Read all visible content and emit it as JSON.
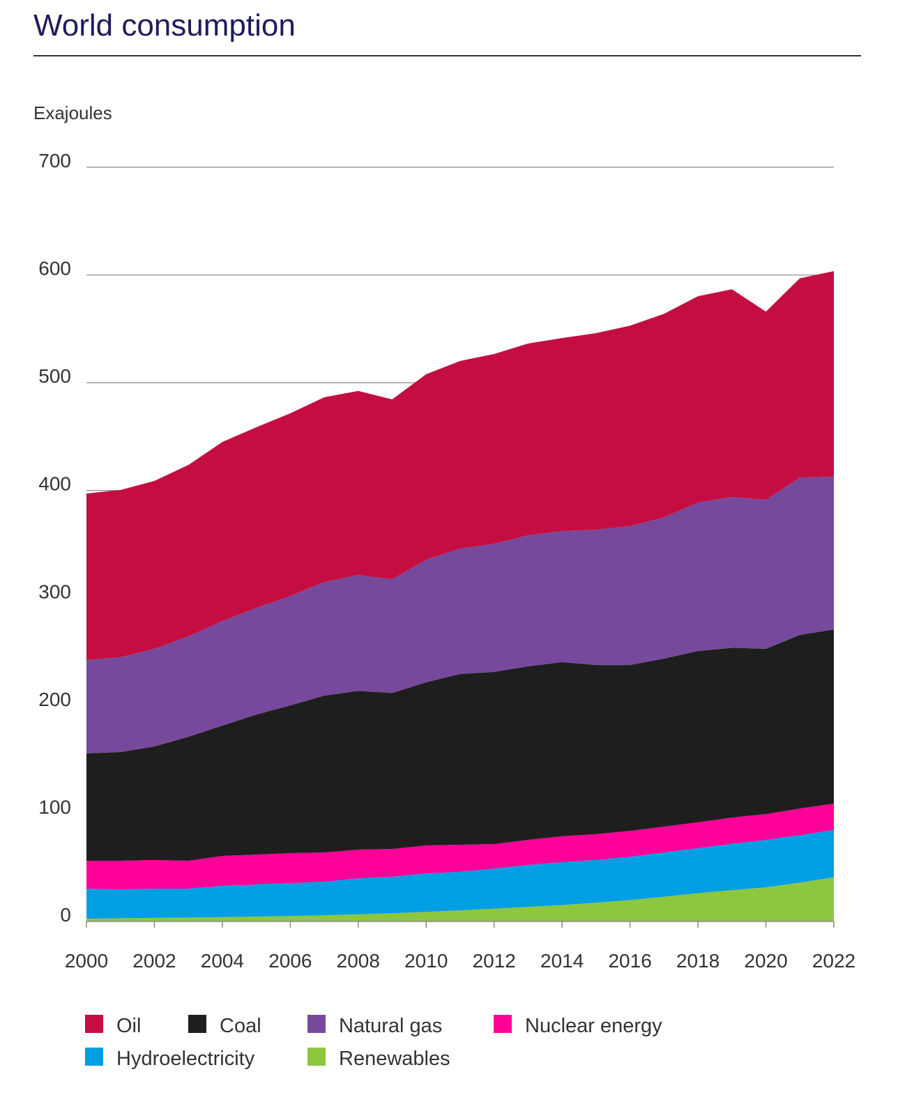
{
  "title": "World consumption",
  "chart_data": {
    "type": "area",
    "stacked": true,
    "ylabel": "Exajoules",
    "ylim": [
      0,
      700
    ],
    "yticks": [
      0,
      100,
      200,
      300,
      400,
      500,
      600,
      700
    ],
    "xticks": [
      2000,
      2002,
      2004,
      2006,
      2008,
      2010,
      2012,
      2014,
      2016,
      2018,
      2020,
      2022
    ],
    "grid": "horizontal",
    "legend_position": "bottom",
    "x": [
      2000,
      2001,
      2002,
      2003,
      2004,
      2005,
      2006,
      2007,
      2008,
      2009,
      2010,
      2011,
      2012,
      2013,
      2014,
      2015,
      2016,
      2017,
      2018,
      2019,
      2020,
      2021,
      2022
    ],
    "series": [
      {
        "name": "Renewables",
        "color": "#8dc63f",
        "values": [
          2.6,
          3,
          3.3,
          3.6,
          4,
          4.5,
          5,
          5.7,
          6.6,
          7.6,
          8.9,
          10.3,
          11.8,
          13.5,
          15.2,
          17.4,
          19.8,
          23,
          26.2,
          29,
          31.6,
          36,
          41
        ]
      },
      {
        "name": "Hydroelectricity",
        "color": "#009fe3",
        "values": [
          27.8,
          26.8,
          27.1,
          26.8,
          29,
          29.8,
          30.6,
          31.2,
          33.4,
          33.8,
          35.7,
          35.7,
          37.2,
          38.9,
          39.8,
          39.6,
          40.2,
          41,
          41.8,
          43,
          44.1,
          44,
          44
        ]
      },
      {
        "name": "Nuclear energy",
        "color": "#ff0099",
        "values": [
          25.9,
          26.5,
          26.6,
          25.9,
          27.8,
          27.7,
          27.8,
          27.1,
          26.6,
          25.9,
          25.9,
          25.2,
          22.8,
          23.3,
          24,
          24,
          24,
          24,
          24,
          24.4,
          23.9,
          24.8,
          24.3
        ]
      },
      {
        "name": "Coal",
        "color": "#1e1e1e",
        "values": [
          99.7,
          100.9,
          105.4,
          115.1,
          121,
          130,
          137.1,
          145.6,
          147.4,
          144.7,
          151.5,
          158.5,
          159.8,
          161.1,
          161.7,
          157,
          154,
          156,
          159,
          157.6,
          153.4,
          161.2,
          161.7
        ]
      },
      {
        "name": "Natural gas",
        "color": "#77499c",
        "values": [
          86.6,
          88,
          90.6,
          93.2,
          97,
          99,
          101.5,
          105.4,
          107.5,
          105.6,
          113.7,
          116.3,
          119,
          121.6,
          121.6,
          125.6,
          128.8,
          131,
          137.8,
          140,
          138.4,
          146,
          141.8
        ]
      },
      {
        "name": "Oil",
        "color": "#c40e41",
        "values": [
          154.6,
          155.3,
          155.9,
          159.1,
          166.2,
          167.7,
          169.6,
          171.5,
          170.9,
          167,
          172.2,
          174.2,
          176.1,
          178,
          179.2,
          182.4,
          186.2,
          189,
          191.5,
          192.8,
          174.6,
          185,
          190.8
        ]
      }
    ],
    "legend_order": [
      "Oil",
      "Coal",
      "Natural gas",
      "Nuclear energy",
      "Hydroelectricity",
      "Renewables"
    ]
  }
}
